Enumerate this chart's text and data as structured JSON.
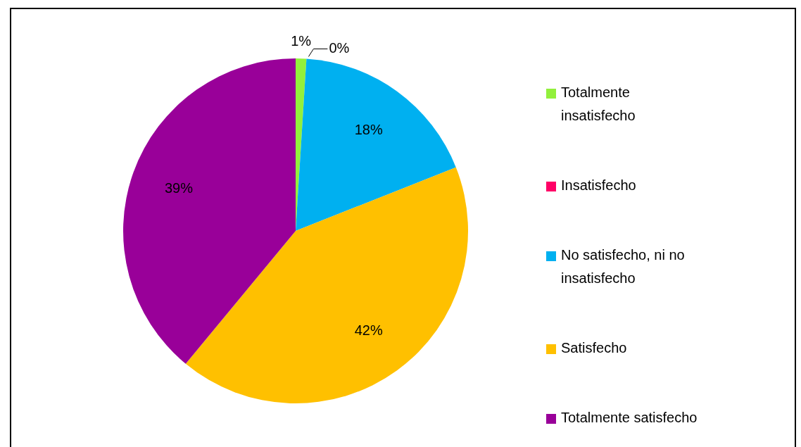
{
  "chart_data": {
    "type": "pie",
    "categories": [
      "Totalmente insatisfecho",
      "Insatisfecho",
      "No satisfecho, ni no insatisfecho",
      "Satisfecho",
      "Totalmente satisfecho"
    ],
    "values": [
      1,
      0,
      18,
      42,
      39
    ],
    "colors": [
      "#92f03c",
      "#ff0066",
      "#00b0f0",
      "#ffc000",
      "#990099"
    ],
    "value_labels": [
      "1%",
      "0%",
      "18%",
      "42%",
      "39%"
    ],
    "legend": "right"
  }
}
